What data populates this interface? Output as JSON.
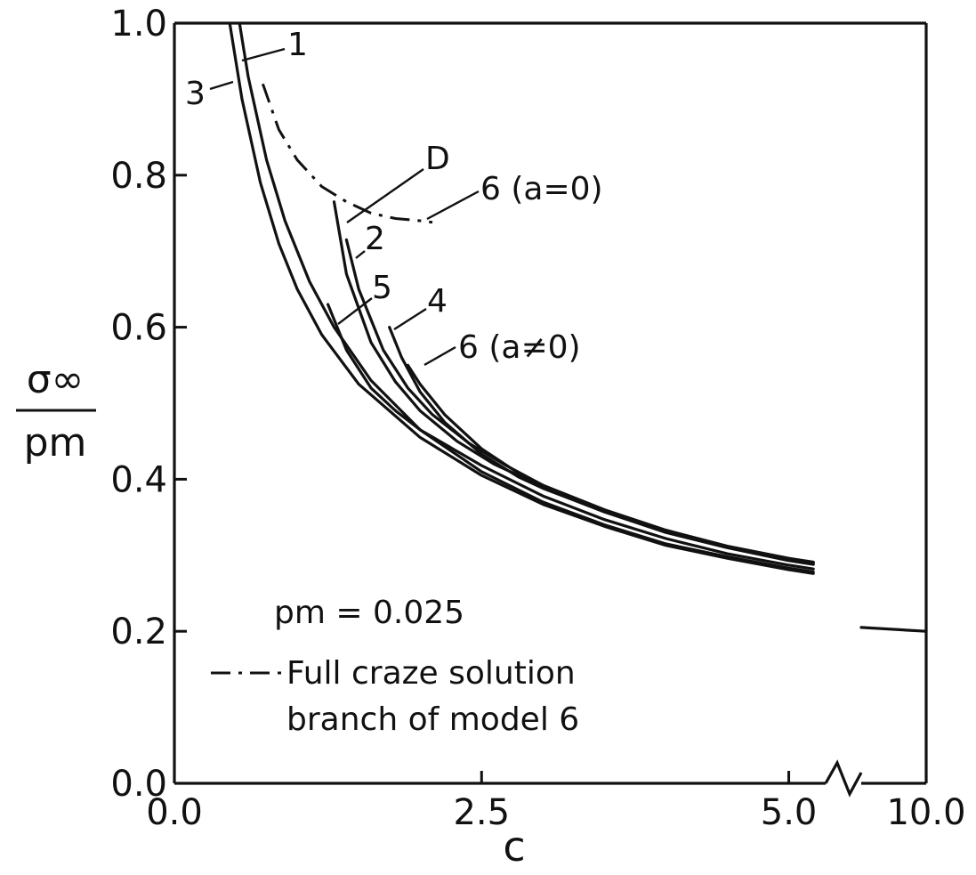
{
  "chart_data": {
    "type": "line",
    "xlabel": "c",
    "ylabel_numerator": "σ∞",
    "ylabel_denominator": "pm",
    "xlim": [
      0.0,
      5.3
    ],
    "ylim": [
      0.0,
      1.0
    ],
    "x_ticks": [
      {
        "value": 0.0,
        "label": "0.0"
      },
      {
        "value": 2.5,
        "label": "2.5"
      },
      {
        "value": 5.0,
        "label": "5.0"
      }
    ],
    "x_break_tick_label": "10.0",
    "y_ticks": [
      {
        "value": 0.0,
        "label": "0.0"
      },
      {
        "value": 0.2,
        "label": "0.2"
      },
      {
        "value": 0.4,
        "label": "0.4"
      },
      {
        "value": 0.6,
        "label": "0.6"
      },
      {
        "value": 0.8,
        "label": "0.8"
      },
      {
        "value": 1.0,
        "label": "1.0"
      }
    ],
    "axis_break": true,
    "grid": false,
    "parameter_note": "pm = 0.025",
    "legend": {
      "dashdot_label_line1": "Full craze solution",
      "dashdot_label_line2": "branch of model 6"
    },
    "series": [
      {
        "name": "1",
        "style": "solid",
        "x": [
          0.53,
          0.6,
          0.75,
          0.9,
          1.1,
          1.3,
          1.6,
          2.0,
          2.5,
          3.0,
          3.5,
          4.0,
          4.5,
          5.0,
          5.2
        ],
        "y": [
          1.0,
          0.93,
          0.82,
          0.74,
          0.66,
          0.6,
          0.53,
          0.465,
          0.41,
          0.37,
          0.34,
          0.315,
          0.298,
          0.283,
          0.278
        ]
      },
      {
        "name": "3",
        "style": "solid",
        "x": [
          0.45,
          0.55,
          0.7,
          0.85,
          1.0,
          1.2,
          1.5,
          2.0,
          2.5,
          3.0,
          3.5,
          4.0,
          4.5,
          5.0,
          5.2
        ],
        "y": [
          1.0,
          0.9,
          0.79,
          0.71,
          0.65,
          0.59,
          0.525,
          0.455,
          0.405,
          0.367,
          0.338,
          0.313,
          0.296,
          0.281,
          0.276
        ]
      },
      {
        "name": "5",
        "style": "solid",
        "x": [
          1.25,
          1.4,
          1.6,
          1.8,
          2.0,
          2.5,
          3.0,
          3.5,
          4.0,
          4.5,
          5.0,
          5.2
        ],
        "y": [
          0.63,
          0.57,
          0.52,
          0.49,
          0.465,
          0.418,
          0.378,
          0.347,
          0.322,
          0.302,
          0.287,
          0.282
        ]
      },
      {
        "name": "D",
        "style": "solid",
        "x": [
          1.3,
          1.4,
          1.6,
          1.8,
          2.0,
          2.3,
          2.6,
          3.0,
          3.5,
          4.0,
          4.5,
          5.0,
          5.2
        ],
        "y": [
          0.765,
          0.67,
          0.58,
          0.528,
          0.49,
          0.45,
          0.42,
          0.39,
          0.357,
          0.33,
          0.31,
          0.293,
          0.288
        ]
      },
      {
        "name": "2",
        "style": "solid",
        "x": [
          1.4,
          1.5,
          1.7,
          1.9,
          2.1,
          2.4,
          2.7,
          3.0,
          3.5,
          4.0,
          4.5,
          5.0,
          5.2
        ],
        "y": [
          0.715,
          0.65,
          0.57,
          0.52,
          0.485,
          0.447,
          0.418,
          0.392,
          0.358,
          0.332,
          0.311,
          0.294,
          0.289
        ]
      },
      {
        "name": "4",
        "style": "solid",
        "x": [
          1.75,
          1.85,
          2.0,
          2.2,
          2.5,
          2.8,
          3.0,
          3.5,
          4.0,
          4.5,
          5.0,
          5.2
        ],
        "y": [
          0.6,
          0.56,
          0.515,
          0.475,
          0.433,
          0.403,
          0.388,
          0.357,
          0.331,
          0.311,
          0.295,
          0.29
        ]
      },
      {
        "name": "6 (a≠0)",
        "style": "solid",
        "x": [
          1.9,
          2.0,
          2.2,
          2.5,
          2.8,
          3.0,
          3.5,
          4.0,
          4.5,
          5.0,
          5.2
        ],
        "y": [
          0.55,
          0.525,
          0.485,
          0.44,
          0.408,
          0.392,
          0.36,
          0.333,
          0.312,
          0.296,
          0.291
        ]
      },
      {
        "name": "6 (a=0)",
        "style": "dashdot",
        "x": [
          0.72,
          0.85,
          1.0,
          1.2,
          1.4,
          1.6,
          1.8,
          2.0,
          2.1
        ],
        "y": [
          0.92,
          0.86,
          0.82,
          0.785,
          0.765,
          0.75,
          0.743,
          0.74,
          0.738
        ]
      }
    ],
    "break_segment": {
      "x": [
        9.6,
        10.0
      ],
      "y": [
        0.205,
        0.2
      ]
    }
  }
}
